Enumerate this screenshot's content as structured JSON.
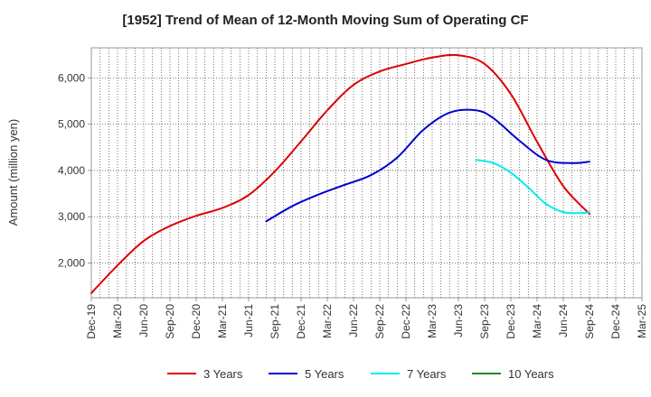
{
  "chart_data": {
    "type": "line",
    "title": "[1952]  Trend of Mean of 12-Month Moving Sum of Operating CF",
    "xlabel": "",
    "ylabel": "Amount (million yen)",
    "ylim": [
      1250,
      6650
    ],
    "yticks": [
      2000,
      3000,
      4000,
      5000,
      6000
    ],
    "ytick_labels": [
      "2,000",
      "3,000",
      "4,000",
      "5,000",
      "6,000"
    ],
    "xticks": [
      "Dec-19",
      "Mar-20",
      "Jun-20",
      "Sep-20",
      "Dec-20",
      "Mar-21",
      "Jun-21",
      "Sep-21",
      "Dec-21",
      "Mar-22",
      "Jun-22",
      "Sep-22",
      "Dec-22",
      "Mar-23",
      "Jun-23",
      "Sep-23",
      "Dec-23",
      "Mar-24",
      "Jun-24",
      "Sep-24",
      "Dec-24",
      "Mar-25"
    ],
    "x_unit": "months since Dec-19",
    "xlim": [
      0,
      63
    ],
    "grid": true,
    "legend_position": "bottom",
    "series": [
      {
        "name": "3 Years",
        "color": "#dd0000",
        "x": [
          0,
          3,
          6,
          9,
          12,
          15,
          18,
          21,
          24,
          27,
          30,
          33,
          36,
          39,
          42,
          45,
          48,
          51,
          54,
          57
        ],
        "values": [
          1350,
          1950,
          2480,
          2800,
          3020,
          3190,
          3470,
          3980,
          4630,
          5300,
          5850,
          6140,
          6300,
          6440,
          6490,
          6300,
          5650,
          4620,
          3660,
          3060
        ]
      },
      {
        "name": "5 Years",
        "color": "#0000cc",
        "x": [
          20,
          23,
          26,
          29,
          32,
          35,
          38,
          41,
          44,
          46,
          49,
          52,
          55,
          57
        ],
        "values": [
          2900,
          3230,
          3480,
          3690,
          3900,
          4280,
          4880,
          5250,
          5300,
          5130,
          4640,
          4230,
          4160,
          4190
        ]
      },
      {
        "name": "7 Years",
        "color": "#00eeee",
        "x": [
          44,
          46,
          48,
          50,
          52,
          54,
          56,
          57
        ],
        "values": [
          4230,
          4160,
          3950,
          3630,
          3280,
          3100,
          3080,
          3100
        ]
      },
      {
        "name": "10 Years",
        "color": "#228822",
        "x": [],
        "values": []
      }
    ]
  }
}
